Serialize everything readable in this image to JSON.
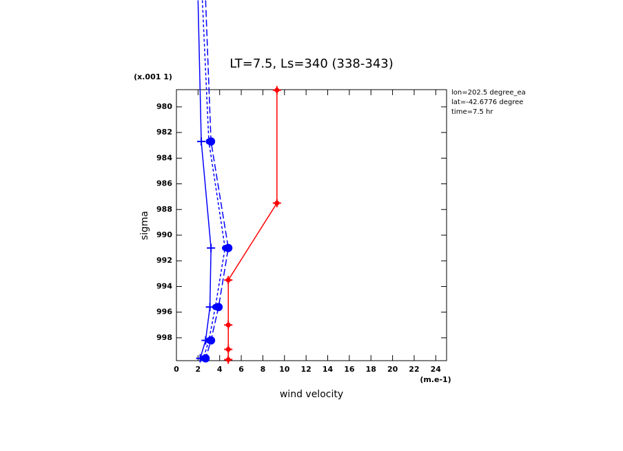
{
  "chart_data": {
    "type": "line",
    "title": "LT=7.5, Ls=340 (338-343)",
    "y_scale_note": "(x.001 1)",
    "y_label": "sigma",
    "x_units": "(m.e-1)",
    "x_label": "wind velocity",
    "info": [
      "lon=202.5 degree_ea",
      "lat=-42.6776 degree",
      "time=7.5 hr"
    ],
    "xlim": [
      0,
      25
    ],
    "xticks": [
      0,
      2,
      4,
      6,
      8,
      10,
      12,
      14,
      16,
      18,
      20,
      22,
      24
    ],
    "ylim": [
      999.78,
      978.66
    ],
    "yticks": [
      980,
      982,
      984,
      986,
      988,
      990,
      992,
      994,
      996,
      998
    ],
    "series": [
      {
        "color": "#ff0000",
        "dash": "solid",
        "marker": "plus-dot",
        "x": [
          9.3,
          9.3,
          4.8,
          4.8,
          4.8,
          4.8
        ],
        "values": [
          978.7,
          987.5,
          993.5,
          997.0,
          998.9,
          999.7
        ]
      },
      {
        "color": "#0000ff",
        "dash": "solid",
        "marker": "plus",
        "x": [
          2.0,
          2.3,
          3.2,
          3.1,
          2.7,
          2.2
        ],
        "values": [
          971.7,
          982.7,
          991.0,
          995.6,
          998.2,
          999.6
        ]
      },
      {
        "color": "#0000ff",
        "dash": "long",
        "marker": "circle",
        "x": [
          2.7,
          3.2,
          4.8,
          3.9,
          3.2,
          2.7
        ],
        "values": [
          971.7,
          982.7,
          991.0,
          995.6,
          998.2,
          999.6
        ]
      },
      {
        "color": "#0000ff",
        "dash": "short",
        "marker": "small-circle",
        "x": [
          2.4,
          3.0,
          4.5,
          3.6,
          3.0,
          2.5
        ],
        "values": [
          971.7,
          982.7,
          991.0,
          995.6,
          998.2,
          999.6
        ]
      }
    ]
  }
}
